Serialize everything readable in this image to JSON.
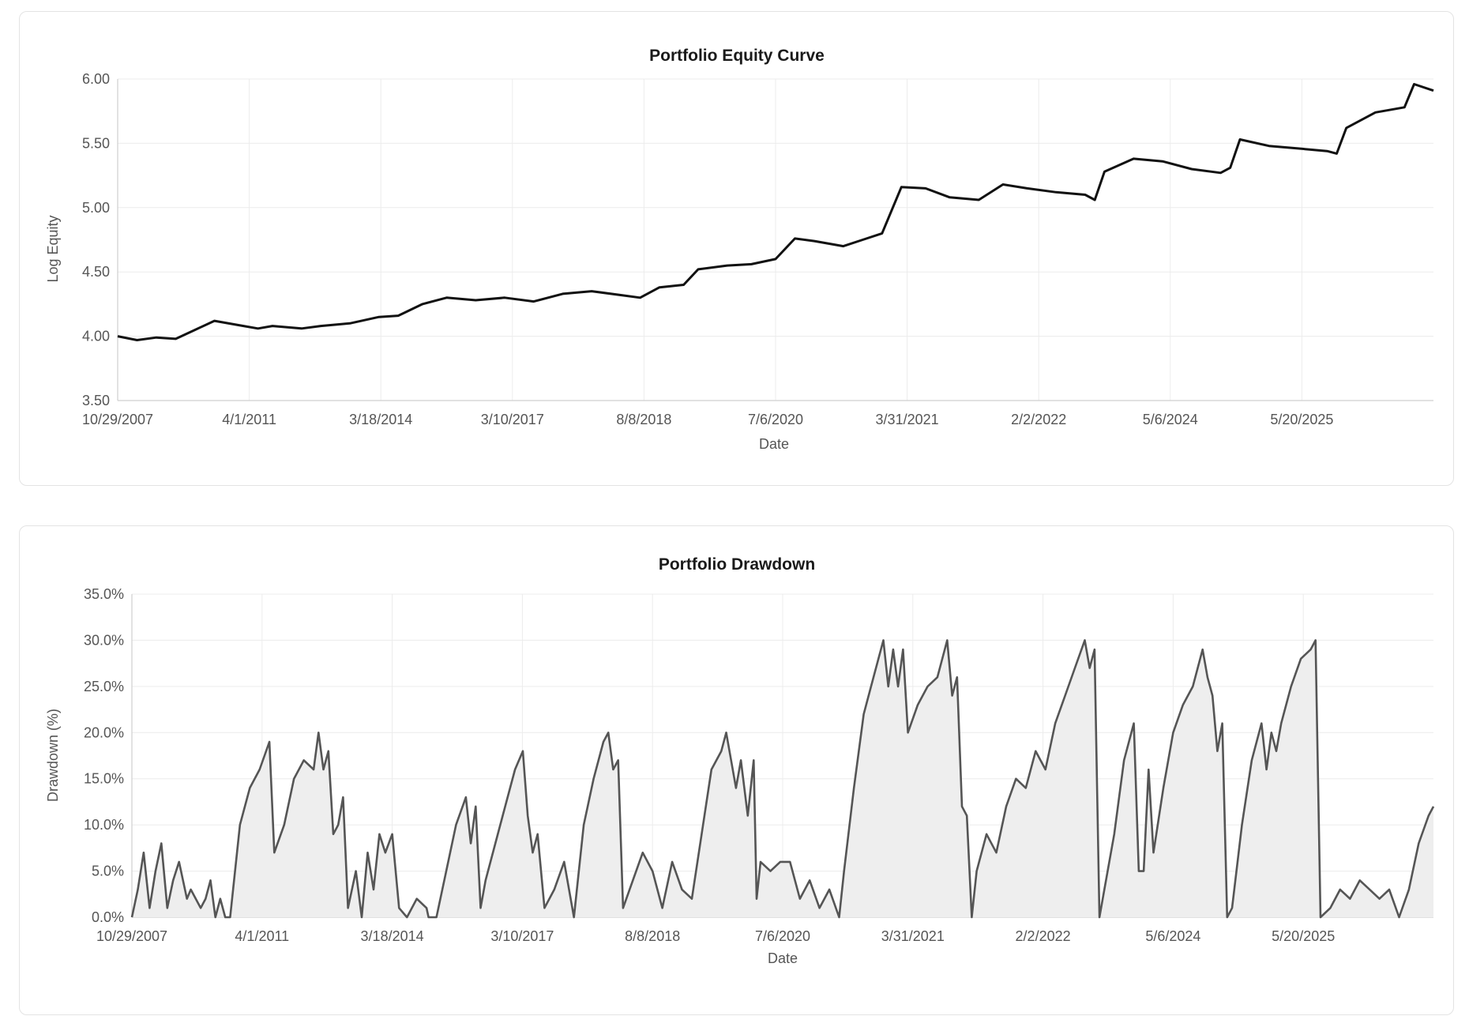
{
  "chart_data": [
    {
      "type": "line",
      "title": "Portfolio Equity Curve",
      "xlabel": "Date",
      "ylabel": "Log Equity",
      "ylim": [
        3.5,
        6.0
      ],
      "yticks": [
        "3.50",
        "4.00",
        "4.50",
        "5.00",
        "5.50",
        "6.00"
      ],
      "xticks": [
        "10/29/2007",
        "4/1/2011",
        "3/18/2014",
        "3/10/2017",
        "8/8/2018",
        "7/6/2020",
        "3/31/2021",
        "2/2/2022",
        "5/6/2024",
        "5/20/2025"
      ],
      "grid": true,
      "legend": "none",
      "line_color": "#111111",
      "series": [
        {
          "x": [
            "10/29/2007",
            "4/1/2011",
            "3/18/2014",
            "3/10/2017",
            "8/8/2018",
            "7/6/2020",
            "3/31/2021",
            "2/2/2022",
            "5/6/2024",
            "5/20/2025"
          ],
          "values": [
            4.0,
            4.08,
            4.16,
            4.3,
            4.4,
            4.77,
            5.15,
            5.18,
            5.38,
            5.48
          ],
          "points": [
            [
              0,
              4.0
            ],
            [
              0.02,
              3.97
            ],
            [
              0.04,
              3.99
            ],
            [
              0.06,
              3.98
            ],
            [
              0.08,
              4.05
            ],
            [
              0.1,
              4.12
            ],
            [
              0.13,
              4.08
            ],
            [
              0.145,
              4.06
            ],
            [
              0.16,
              4.08
            ],
            [
              0.19,
              4.06
            ],
            [
              0.21,
              4.08
            ],
            [
              0.24,
              4.1
            ],
            [
              0.27,
              4.15
            ],
            [
              0.29,
              4.16
            ],
            [
              0.315,
              4.25
            ],
            [
              0.34,
              4.3
            ],
            [
              0.37,
              4.28
            ],
            [
              0.4,
              4.3
            ],
            [
              0.43,
              4.27
            ],
            [
              0.46,
              4.33
            ],
            [
              0.49,
              4.35
            ],
            [
              0.52,
              4.32
            ],
            [
              0.54,
              4.3
            ],
            [
              0.56,
              4.38
            ],
            [
              0.585,
              4.4
            ],
            [
              0.6,
              4.52
            ],
            [
              0.63,
              4.55
            ],
            [
              0.655,
              4.56
            ],
            [
              0.68,
              4.6
            ],
            [
              0.7,
              4.76
            ],
            [
              0.72,
              4.74
            ],
            [
              0.75,
              4.7
            ],
            [
              0.77,
              4.75
            ],
            [
              0.79,
              4.8
            ],
            [
              0.81,
              5.16
            ],
            [
              0.835,
              5.15
            ],
            [
              0.86,
              5.08
            ],
            [
              0.89,
              5.06
            ],
            [
              0.915,
              5.18
            ],
            [
              0.94,
              5.15
            ],
            [
              0.97,
              5.12
            ],
            [
              1.0,
              5.1
            ],
            [
              1.01,
              5.06
            ],
            [
              1.02,
              5.28
            ],
            [
              1.05,
              5.38
            ],
            [
              1.08,
              5.36
            ],
            [
              1.11,
              5.3
            ],
            [
              1.14,
              5.27
            ],
            [
              1.15,
              5.31
            ],
            [
              1.16,
              5.53
            ],
            [
              1.19,
              5.48
            ],
            [
              1.22,
              5.46
            ],
            [
              1.25,
              5.44
            ],
            [
              1.26,
              5.42
            ],
            [
              1.27,
              5.62
            ],
            [
              1.3,
              5.74
            ],
            [
              1.33,
              5.78
            ],
            [
              1.34,
              5.96
            ],
            [
              1.36,
              5.91
            ]
          ]
        }
      ]
    },
    {
      "type": "area",
      "title": "Portfolio Drawdown",
      "xlabel": "Date",
      "ylabel": "Drawdown (%)",
      "ylim": [
        0,
        35
      ],
      "yticks": [
        "0.0%",
        "5.0%",
        "10.0%",
        "15.0%",
        "20.0%",
        "25.0%",
        "30.0%",
        "35.0%"
      ],
      "xticks": [
        "10/29/2007",
        "4/1/2011",
        "3/18/2014",
        "3/10/2017",
        "8/8/2018",
        "7/6/2020",
        "3/31/2021",
        "2/2/2022",
        "5/6/2024",
        "5/20/2025"
      ],
      "grid": true,
      "legend": "none",
      "line_color": "#555555",
      "fill_color": "#eeeeee",
      "series": [
        {
          "points": [
            [
              0,
              0
            ],
            [
              0.006,
              3
            ],
            [
              0.012,
              7
            ],
            [
              0.018,
              1
            ],
            [
              0.024,
              5
            ],
            [
              0.03,
              8
            ],
            [
              0.036,
              1
            ],
            [
              0.042,
              4
            ],
            [
              0.048,
              6
            ],
            [
              0.056,
              2
            ],
            [
              0.06,
              3
            ],
            [
              0.07,
              1
            ],
            [
              0.075,
              2
            ],
            [
              0.08,
              4
            ],
            [
              0.085,
              0
            ],
            [
              0.09,
              2
            ],
            [
              0.095,
              0
            ],
            [
              0.1,
              0
            ],
            [
              0.11,
              10
            ],
            [
              0.12,
              14
            ],
            [
              0.13,
              16
            ],
            [
              0.14,
              19
            ],
            [
              0.145,
              7
            ],
            [
              0.155,
              10
            ],
            [
              0.165,
              15
            ],
            [
              0.175,
              17
            ],
            [
              0.185,
              16
            ],
            [
              0.19,
              20
            ],
            [
              0.195,
              16
            ],
            [
              0.2,
              18
            ],
            [
              0.205,
              9
            ],
            [
              0.21,
              10
            ],
            [
              0.215,
              13
            ],
            [
              0.22,
              1
            ],
            [
              0.228,
              5
            ],
            [
              0.234,
              0
            ],
            [
              0.24,
              7
            ],
            [
              0.246,
              3
            ],
            [
              0.252,
              9
            ],
            [
              0.258,
              7
            ],
            [
              0.265,
              9
            ],
            [
              0.272,
              1
            ],
            [
              0.28,
              0
            ],
            [
              0.29,
              2
            ],
            [
              0.3,
              1
            ],
            [
              0.302,
              0
            ],
            [
              0.31,
              0
            ],
            [
              0.32,
              5
            ],
            [
              0.33,
              10
            ],
            [
              0.34,
              13
            ],
            [
              0.345,
              8
            ],
            [
              0.35,
              12
            ],
            [
              0.355,
              1
            ],
            [
              0.36,
              4
            ],
            [
              0.37,
              8
            ],
            [
              0.38,
              12
            ],
            [
              0.39,
              16
            ],
            [
              0.398,
              18
            ],
            [
              0.403,
              11
            ],
            [
              0.408,
              7
            ],
            [
              0.413,
              9
            ],
            [
              0.42,
              1
            ],
            [
              0.43,
              3
            ],
            [
              0.44,
              6
            ],
            [
              0.45,
              0
            ],
            [
              0.46,
              10
            ],
            [
              0.47,
              15
            ],
            [
              0.48,
              19
            ],
            [
              0.485,
              20
            ],
            [
              0.49,
              16
            ],
            [
              0.495,
              17
            ],
            [
              0.5,
              1
            ],
            [
              0.51,
              4
            ],
            [
              0.52,
              7
            ],
            [
              0.53,
              5
            ],
            [
              0.54,
              1
            ],
            [
              0.55,
              6
            ],
            [
              0.56,
              3
            ],
            [
              0.57,
              2
            ],
            [
              0.58,
              9
            ],
            [
              0.59,
              16
            ],
            [
              0.6,
              18
            ],
            [
              0.605,
              20
            ],
            [
              0.61,
              17
            ],
            [
              0.615,
              14
            ],
            [
              0.62,
              17
            ],
            [
              0.627,
              11
            ],
            [
              0.633,
              17
            ],
            [
              0.636,
              2
            ],
            [
              0.64,
              6
            ],
            [
              0.65,
              5
            ],
            [
              0.66,
              6
            ],
            [
              0.67,
              6
            ],
            [
              0.68,
              2
            ],
            [
              0.69,
              4
            ],
            [
              0.7,
              1
            ],
            [
              0.71,
              3
            ],
            [
              0.72,
              0
            ],
            [
              0.725,
              5
            ],
            [
              0.735,
              14
            ],
            [
              0.745,
              22
            ],
            [
              0.755,
              26
            ],
            [
              0.765,
              30
            ],
            [
              0.77,
              25
            ],
            [
              0.775,
              29
            ],
            [
              0.78,
              25
            ],
            [
              0.785,
              29
            ],
            [
              0.79,
              20
            ],
            [
              0.8,
              23
            ],
            [
              0.81,
              25
            ],
            [
              0.82,
              26
            ],
            [
              0.83,
              30
            ],
            [
              0.835,
              24
            ],
            [
              0.84,
              26
            ],
            [
              0.845,
              12
            ],
            [
              0.85,
              11
            ],
            [
              0.855,
              0
            ],
            [
              0.86,
              5
            ],
            [
              0.87,
              9
            ],
            [
              0.88,
              7
            ],
            [
              0.89,
              12
            ],
            [
              0.9,
              15
            ],
            [
              0.91,
              14
            ],
            [
              0.92,
              18
            ],
            [
              0.93,
              16
            ],
            [
              0.94,
              21
            ],
            [
              0.95,
              24
            ],
            [
              0.96,
              27
            ],
            [
              0.97,
              30
            ],
            [
              0.975,
              27
            ],
            [
              0.98,
              29
            ],
            [
              0.985,
              0
            ],
            [
              0.99,
              3
            ],
            [
              1.0,
              9
            ],
            [
              1.01,
              17
            ],
            [
              1.02,
              21
            ],
            [
              1.025,
              5
            ],
            [
              1.03,
              5
            ],
            [
              1.035,
              16
            ],
            [
              1.04,
              7
            ],
            [
              1.05,
              14
            ],
            [
              1.06,
              20
            ],
            [
              1.07,
              23
            ],
            [
              1.08,
              25
            ],
            [
              1.09,
              29
            ],
            [
              1.095,
              26
            ],
            [
              1.1,
              24
            ],
            [
              1.105,
              18
            ],
            [
              1.11,
              21
            ],
            [
              1.115,
              0
            ],
            [
              1.12,
              1
            ],
            [
              1.13,
              10
            ],
            [
              1.14,
              17
            ],
            [
              1.15,
              21
            ],
            [
              1.155,
              16
            ],
            [
              1.16,
              20
            ],
            [
              1.165,
              18
            ],
            [
              1.17,
              21
            ],
            [
              1.18,
              25
            ],
            [
              1.19,
              28
            ],
            [
              1.2,
              29
            ],
            [
              1.205,
              30
            ],
            [
              1.21,
              0
            ],
            [
              1.22,
              1
            ],
            [
              1.23,
              3
            ],
            [
              1.24,
              2
            ],
            [
              1.25,
              4
            ],
            [
              1.26,
              3
            ],
            [
              1.27,
              2
            ],
            [
              1.28,
              3
            ],
            [
              1.29,
              0
            ],
            [
              1.3,
              3
            ],
            [
              1.31,
              8
            ],
            [
              1.32,
              11
            ],
            [
              1.325,
              12
            ]
          ]
        }
      ]
    }
  ]
}
